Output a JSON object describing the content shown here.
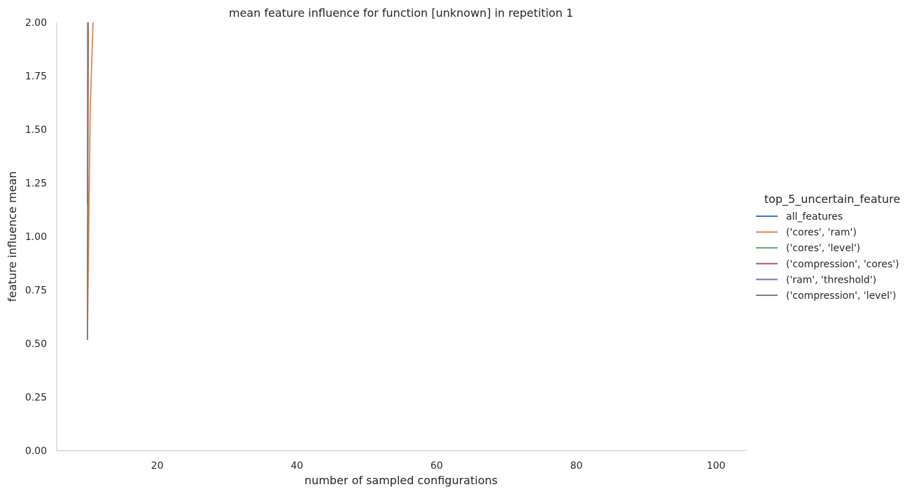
{
  "chart_data": {
    "type": "line",
    "title": "mean feature influence for function [unknown] in repetition 1",
    "xlabel": "number of sampled configurations",
    "ylabel": "feature influence mean",
    "xlim": [
      5.6,
      104.4
    ],
    "ylim": [
      0,
      2
    ],
    "xticks": [
      20,
      40,
      60,
      80,
      100
    ],
    "yticks": [
      0.0,
      0.25,
      0.5,
      0.75,
      1.0,
      1.25,
      1.5,
      1.75,
      2.0
    ],
    "grid": false,
    "legend": {
      "title": "top_5_uncertain_feature",
      "placement": "right"
    },
    "series": [
      {
        "name": "all_features",
        "color": "#4c72b0",
        "x": [
          10,
          10.05
        ],
        "y": [
          1.15,
          2.35
        ]
      },
      {
        "name": "('cores', 'ram')",
        "color": "#dd8452",
        "x": [
          10,
          10.4,
          10.8
        ],
        "y": [
          0.52,
          1.6,
          2.0
        ]
      },
      {
        "name": "('cores', 'level')",
        "color": "#55a868",
        "x": [
          10,
          10.1
        ],
        "y": [
          0.52,
          2.35
        ]
      },
      {
        "name": "('compression', 'cores')",
        "color": "#c44e52",
        "x": [
          10,
          10.15
        ],
        "y": [
          0.52,
          2.35
        ]
      },
      {
        "name": "('ram', 'threshold')",
        "color": "#8172b3",
        "x": [
          10,
          10.1
        ],
        "y": [
          0.52,
          2.35
        ]
      },
      {
        "name": "('compression', 'level')",
        "color": "#937860",
        "x": [
          10,
          10.15
        ],
        "y": [
          0.52,
          2.35
        ]
      }
    ]
  }
}
